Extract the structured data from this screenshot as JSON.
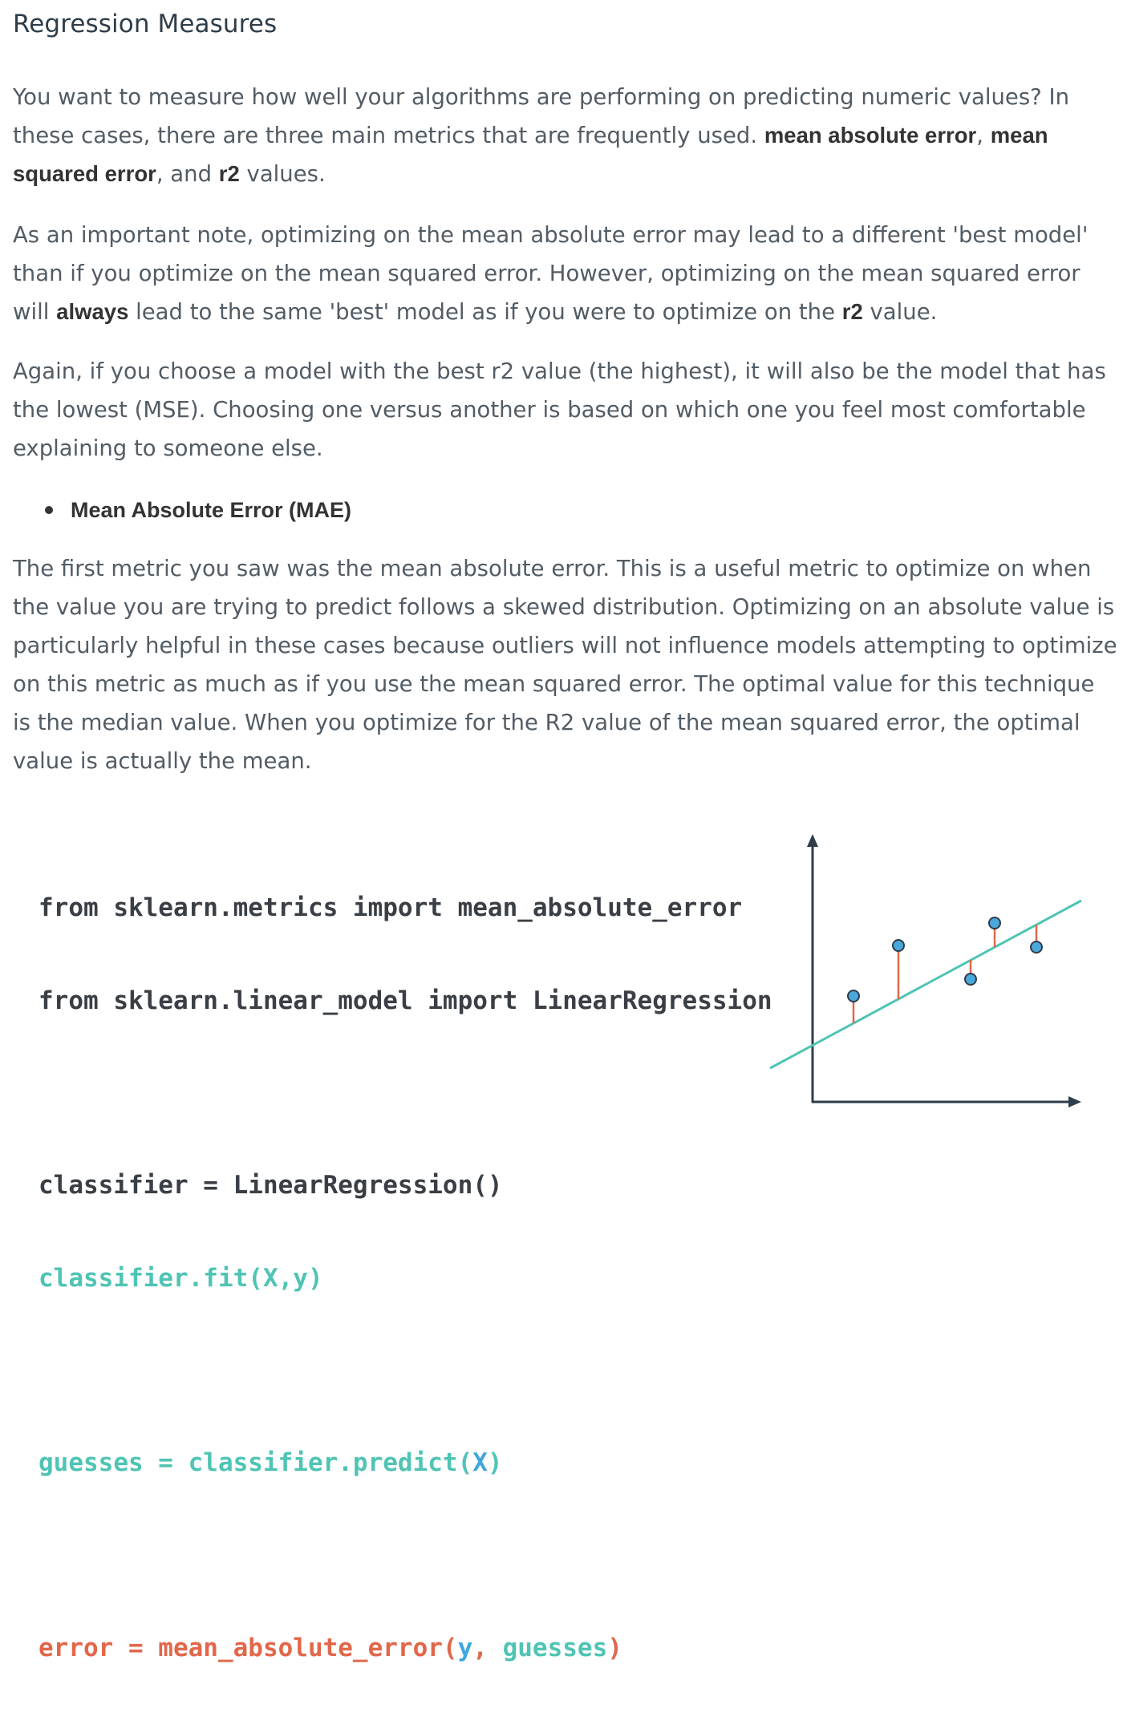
{
  "title": "Regression Measures",
  "p1": {
    "t1": "You want to measure how well your algorithms are performing on predicting numeric values? In these cases, there are three main metrics that are frequently used. ",
    "b1": "mean absolute error",
    "t2": ", ",
    "b2": "mean squared error",
    "t3": ", and ",
    "b3": "r2",
    "t4": " values."
  },
  "p2": {
    "t1": "As an important note, optimizing on the mean absolute error may lead to a different 'best model' than if you optimize on the mean squared error. However, optimizing on the mean squared error will ",
    "b1": "always",
    "t2": " lead to the same 'best' model as if you were to optimize on the ",
    "b2": "r2",
    "t3": " value."
  },
  "p3": "Again, if you choose a model with the best r2 value (the highest), it will also be the model that has the lowest (MSE). Choosing one versus another is based on which one you feel most comfortable explaining to someone else.",
  "bullet": "Mean Absolute Error (MAE)",
  "p4": "The first metric you saw was the mean absolute error. This is a useful metric to optimize on when the value you are trying to predict follows a skewed distribution. Optimizing on an absolute value is particularly helpful in these cases because outliers will not influence models attempting to optimize on this metric as much as if you use the mean squared error. The optimal value for this technique is the median value. When you optimize for the R2 value of the mean squared error, the optimal value is actually the mean.",
  "code": {
    "l1": "from sklearn.metrics import mean_absolute_error",
    "l2": "from sklearn.linear_model import LinearRegression",
    "l3": "classifier = LinearRegression()",
    "l4": "classifier.fit(X,y)",
    "l5a": "guesses = classifier.predict(",
    "l5b": "X",
    "l5c": ")",
    "l6a": "error = mean_absolute_error(",
    "l6b": "y",
    "l6c": ", ",
    "l6d": "guesses",
    "l6e": ")"
  },
  "colors": {
    "code_dark": "#3a3f45",
    "code_teal": "#4fc4b4",
    "code_blue": "#3fa6df",
    "code_red": "#e2674a",
    "axis": "#2e3d49",
    "regression_line": "#4fc4b4",
    "residual": "#e2674a",
    "point_fill": "#4aa8dc"
  },
  "icons": {
    "y_axis_arrow": "arrow-up-icon",
    "x_axis_arrow": "arrow-right-icon"
  }
}
